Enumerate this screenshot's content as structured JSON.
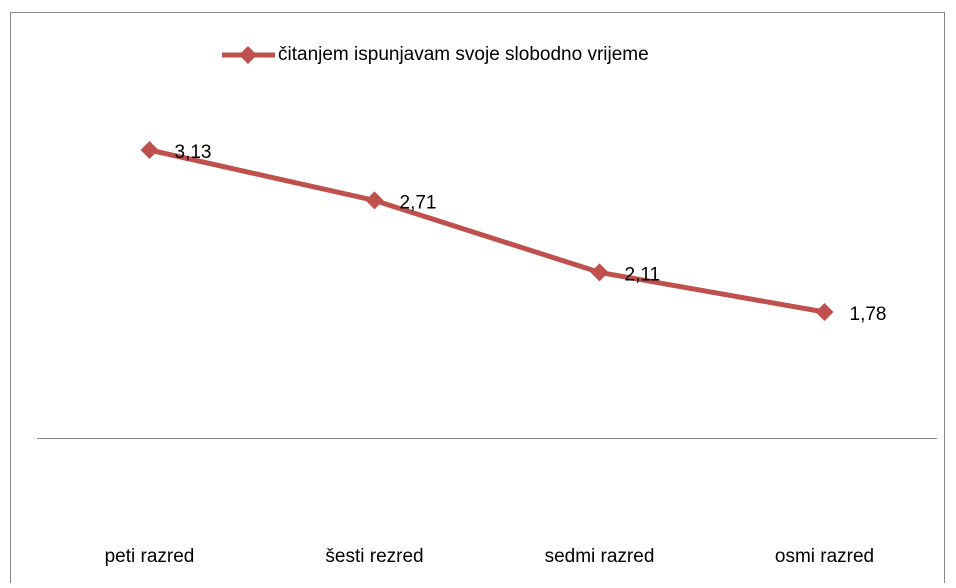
{
  "chart_data": {
    "type": "line",
    "categories": [
      "peti razred",
      "šesti rezred",
      "sedmi razred",
      "osmi razred"
    ],
    "series": [
      {
        "name": "čitanjem ispunjavam svoje slobodno vrijeme",
        "color": "#c0504d",
        "values": [
          3.13,
          2.71,
          2.11,
          1.78
        ],
        "value_labels": [
          "3,13",
          "2,71",
          "2,11",
          "1,78"
        ]
      }
    ],
    "ylim": [
      0.75,
      3.5
    ],
    "legend": "top"
  }
}
